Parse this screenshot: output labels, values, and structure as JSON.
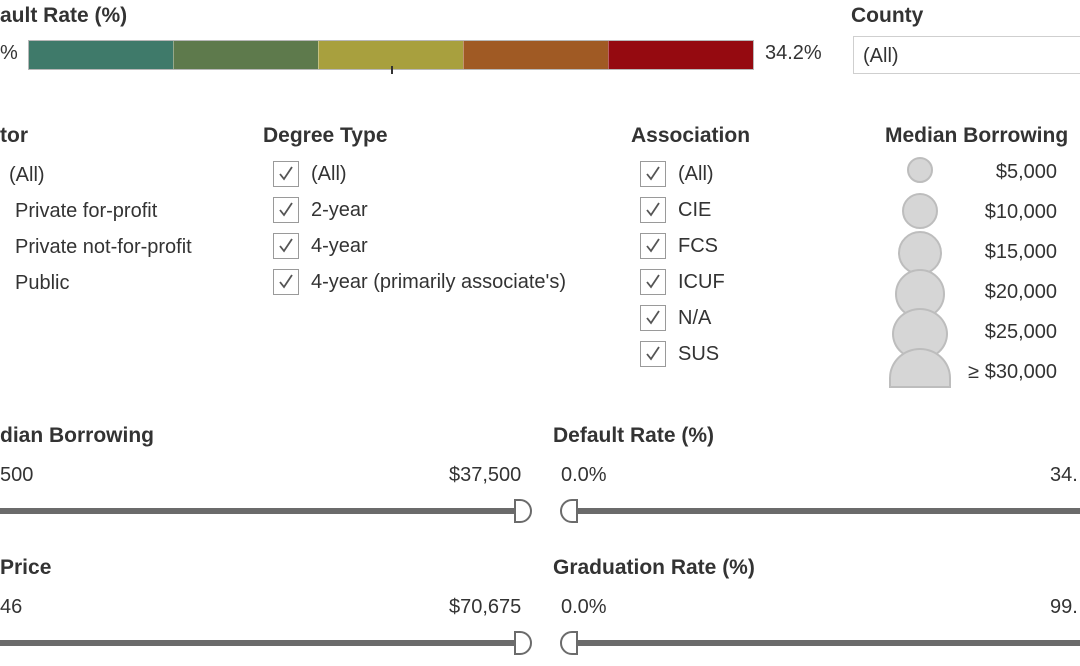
{
  "color_legend": {
    "title": "ault Rate (%)",
    "min_label": "%",
    "max_label": "34.2%",
    "colors": [
      "#3f7a6a",
      "#5e7a4c",
      "#a8a03e",
      "#a05a24",
      "#950a10"
    ]
  },
  "county": {
    "label": "County",
    "value": "(All)"
  },
  "filters": {
    "sector": {
      "title": "tor",
      "items": [
        "(All)",
        "Private for-profit",
        "Private not-for-profit",
        "Public"
      ]
    },
    "degree_type": {
      "title": "Degree Type",
      "items": [
        "(All)",
        "2-year",
        "4-year",
        "4-year (primarily associate's)"
      ]
    },
    "association": {
      "title": "Association",
      "items": [
        "(All)",
        "CIE",
        "FCS",
        "ICUF",
        "N/A",
        "SUS"
      ]
    }
  },
  "size_legend": {
    "title": "Median Borrowing",
    "items": [
      "$5,000",
      "$10,000",
      "$15,000",
      "$20,000",
      "$25,000",
      "≥ $30,000"
    ]
  },
  "sliders": {
    "median_borrowing": {
      "title": "dian Borrowing",
      "min_label": "500",
      "max_label": "$37,500"
    },
    "default_rate": {
      "title": "Default Rate (%)",
      "min_label": "0.0%",
      "max_label": "34."
    },
    "price": {
      "title": " Price",
      "min_label": "46",
      "max_label": "$70,675"
    },
    "graduation_rate": {
      "title": "Graduation Rate (%)",
      "min_label": "0.0%",
      "max_label": "99."
    }
  }
}
